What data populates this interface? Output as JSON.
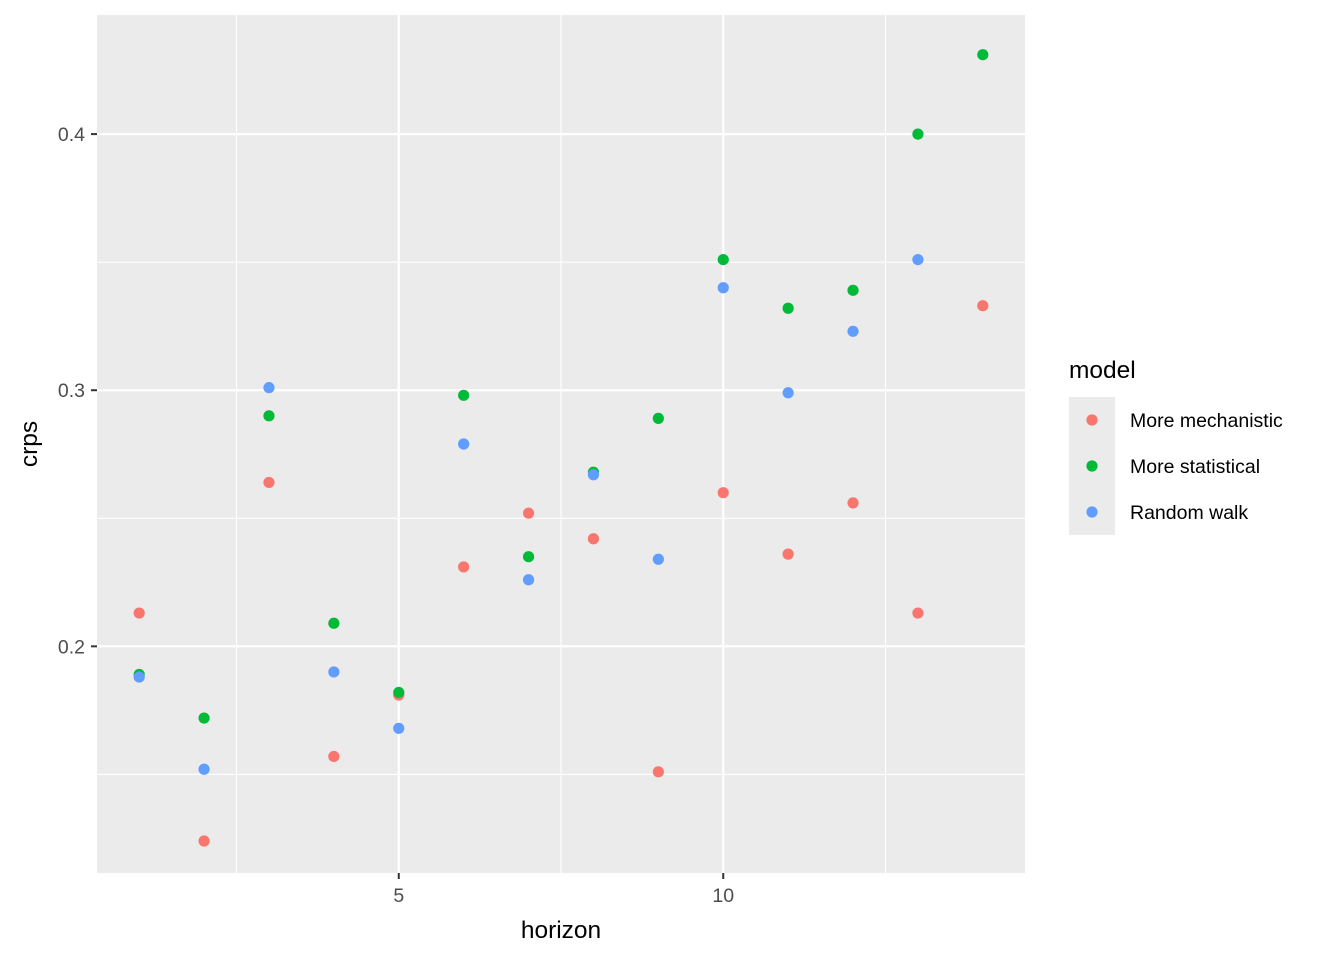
{
  "chart_data": {
    "type": "scatter",
    "xlabel": "horizon",
    "ylabel": "crps",
    "xlim": [
      0.35,
      14.65
    ],
    "ylim": [
      0.1115,
      0.4465
    ],
    "x_ticks": [
      5,
      10
    ],
    "x_tick_labels": [
      "5",
      "10"
    ],
    "x_minor_ticks": [
      2.5,
      7.5,
      12.5
    ],
    "y_ticks": [
      0.2,
      0.3,
      0.4
    ],
    "y_tick_labels": [
      "0.2",
      "0.3",
      "0.4"
    ],
    "y_minor_ticks": [
      0.15,
      0.25,
      0.35
    ],
    "grid": true,
    "legend": {
      "title": "model",
      "position": "right"
    },
    "series": [
      {
        "name": "More mechanistic",
        "color": "#F8766D",
        "points": [
          {
            "x": 1,
            "y": 0.213
          },
          {
            "x": 2,
            "y": 0.124
          },
          {
            "x": 3,
            "y": 0.264
          },
          {
            "x": 4,
            "y": 0.157
          },
          {
            "x": 5,
            "y": 0.181
          },
          {
            "x": 6,
            "y": 0.231
          },
          {
            "x": 7,
            "y": 0.252
          },
          {
            "x": 8,
            "y": 0.242
          },
          {
            "x": 9,
            "y": 0.151
          },
          {
            "x": 10,
            "y": 0.26
          },
          {
            "x": 11,
            "y": 0.236
          },
          {
            "x": 12,
            "y": 0.256
          },
          {
            "x": 13,
            "y": 0.213
          },
          {
            "x": 14,
            "y": 0.333
          }
        ]
      },
      {
        "name": "More statistical",
        "color": "#00BA38",
        "points": [
          {
            "x": 1,
            "y": 0.189
          },
          {
            "x": 2,
            "y": 0.172
          },
          {
            "x": 3,
            "y": 0.29
          },
          {
            "x": 4,
            "y": 0.209
          },
          {
            "x": 5,
            "y": 0.182
          },
          {
            "x": 6,
            "y": 0.298
          },
          {
            "x": 7,
            "y": 0.235
          },
          {
            "x": 8,
            "y": 0.268
          },
          {
            "x": 9,
            "y": 0.289
          },
          {
            "x": 10,
            "y": 0.351
          },
          {
            "x": 11,
            "y": 0.332
          },
          {
            "x": 12,
            "y": 0.339
          },
          {
            "x": 13,
            "y": 0.4
          },
          {
            "x": 14,
            "y": 0.431
          }
        ]
      },
      {
        "name": "Random walk",
        "color": "#619CFF",
        "points": [
          {
            "x": 1,
            "y": 0.188
          },
          {
            "x": 2,
            "y": 0.152
          },
          {
            "x": 3,
            "y": 0.301
          },
          {
            "x": 4,
            "y": 0.19
          },
          {
            "x": 5,
            "y": 0.168
          },
          {
            "x": 6,
            "y": 0.279
          },
          {
            "x": 7,
            "y": 0.226
          },
          {
            "x": 8,
            "y": 0.267
          },
          {
            "x": 9,
            "y": 0.234
          },
          {
            "x": 10,
            "y": 0.34
          },
          {
            "x": 11,
            "y": 0.299
          },
          {
            "x": 12,
            "y": 0.323
          },
          {
            "x": 13,
            "y": 0.351
          }
        ]
      }
    ]
  }
}
